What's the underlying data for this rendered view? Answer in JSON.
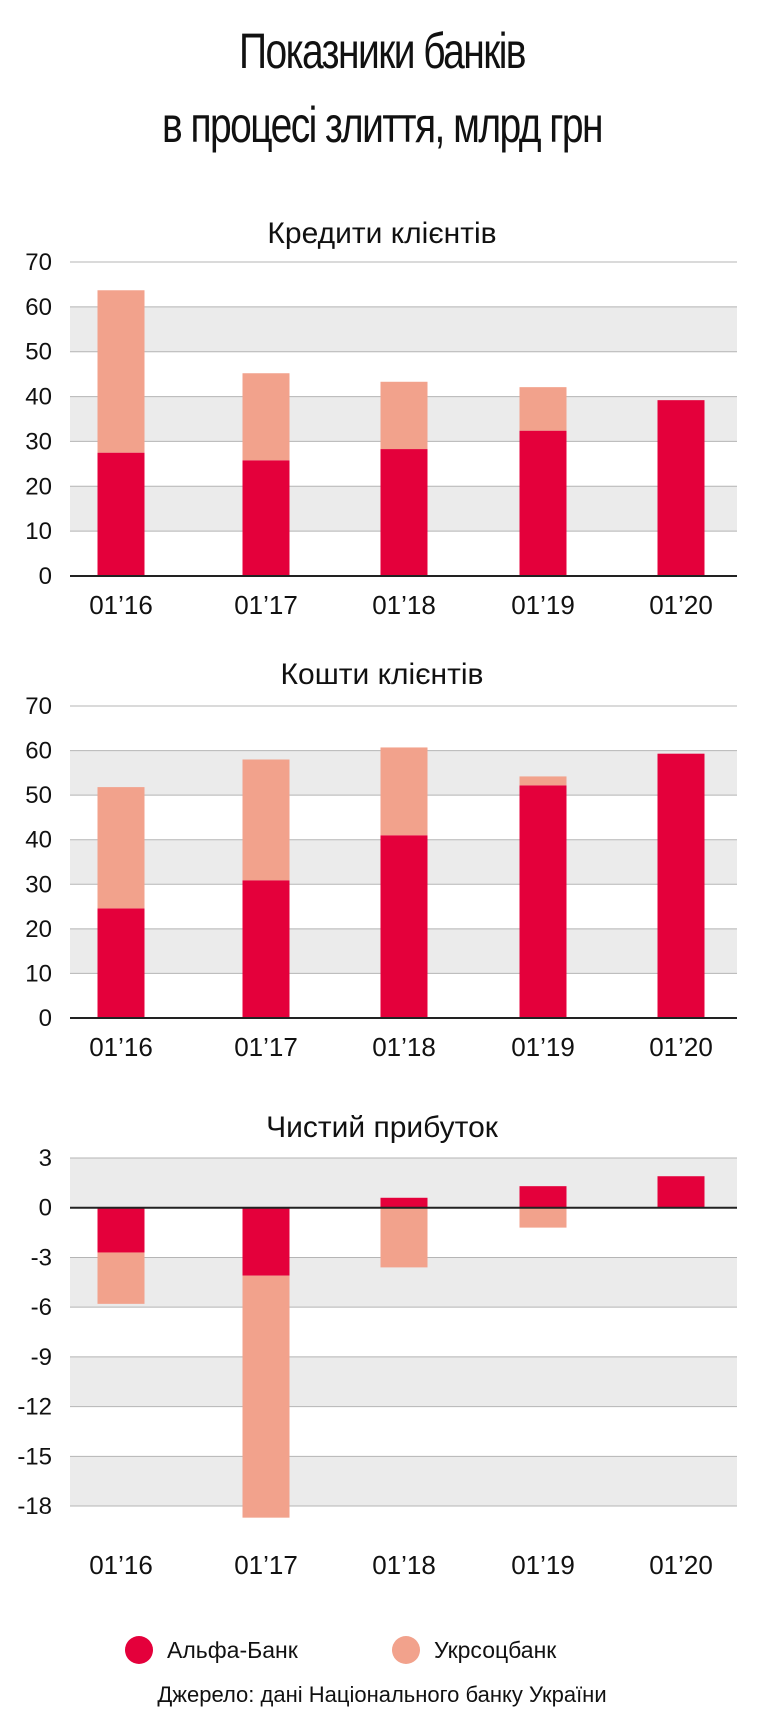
{
  "header": {
    "title_line1": "Показники банків",
    "title_line2": "в процесі злиття, млрд грн"
  },
  "legend": {
    "items": [
      {
        "label": "Альфа-Банк",
        "color": "#e4003b"
      },
      {
        "label": "Укрсоцбанк",
        "color": "#f2a28c"
      }
    ]
  },
  "source": "Джерело: дані Національного банку України",
  "chart_data": [
    {
      "type": "bar",
      "stacked": true,
      "title": "Кредити клієнтів",
      "categories": [
        "01’16",
        "01’17",
        "01’18",
        "01’19",
        "01’20"
      ],
      "series": [
        {
          "name": "Альфа-Банк",
          "color": "#e4003b",
          "values": [
            27.5,
            25.8,
            28.3,
            32.4,
            39.2
          ]
        },
        {
          "name": "Укрсоцбанк",
          "color": "#f2a28c",
          "values": [
            36.2,
            19.4,
            15.0,
            9.7,
            0
          ]
        }
      ],
      "ylim": [
        0,
        70
      ],
      "yticks": [
        0,
        10,
        20,
        30,
        40,
        50,
        60,
        70
      ],
      "grid": true
    },
    {
      "type": "bar",
      "stacked": true,
      "title": "Кошти клієнтів",
      "categories": [
        "01’16",
        "01’17",
        "01’18",
        "01’19",
        "01’20"
      ],
      "series": [
        {
          "name": "Альфа-Банк",
          "color": "#e4003b",
          "values": [
            24.6,
            30.9,
            41.0,
            52.2,
            59.3
          ]
        },
        {
          "name": "Укрсоцбанк",
          "color": "#f2a28c",
          "values": [
            27.2,
            27.1,
            19.7,
            2.0,
            0
          ]
        }
      ],
      "ylim": [
        0,
        70
      ],
      "yticks": [
        0,
        10,
        20,
        30,
        40,
        50,
        60,
        70
      ],
      "grid": true
    },
    {
      "type": "bar",
      "stacked": true,
      "title": "Чистий прибуток",
      "categories": [
        "01’16",
        "01’17",
        "01’18",
        "01’19",
        "01’20"
      ],
      "series": [
        {
          "name": "Альфа-Банк",
          "color": "#e4003b",
          "values": [
            -2.7,
            -4.1,
            0.6,
            1.3,
            1.9
          ]
        },
        {
          "name": "Укрсоцбанк",
          "color": "#f2a28c",
          "values": [
            -3.1,
            -14.6,
            -3.6,
            -1.2,
            0
          ]
        }
      ],
      "ylim": [
        -18.6,
        3
      ],
      "yticks": [
        3,
        0,
        -3,
        -6,
        -9,
        -12,
        -15,
        -18
      ],
      "grid": true
    }
  ]
}
